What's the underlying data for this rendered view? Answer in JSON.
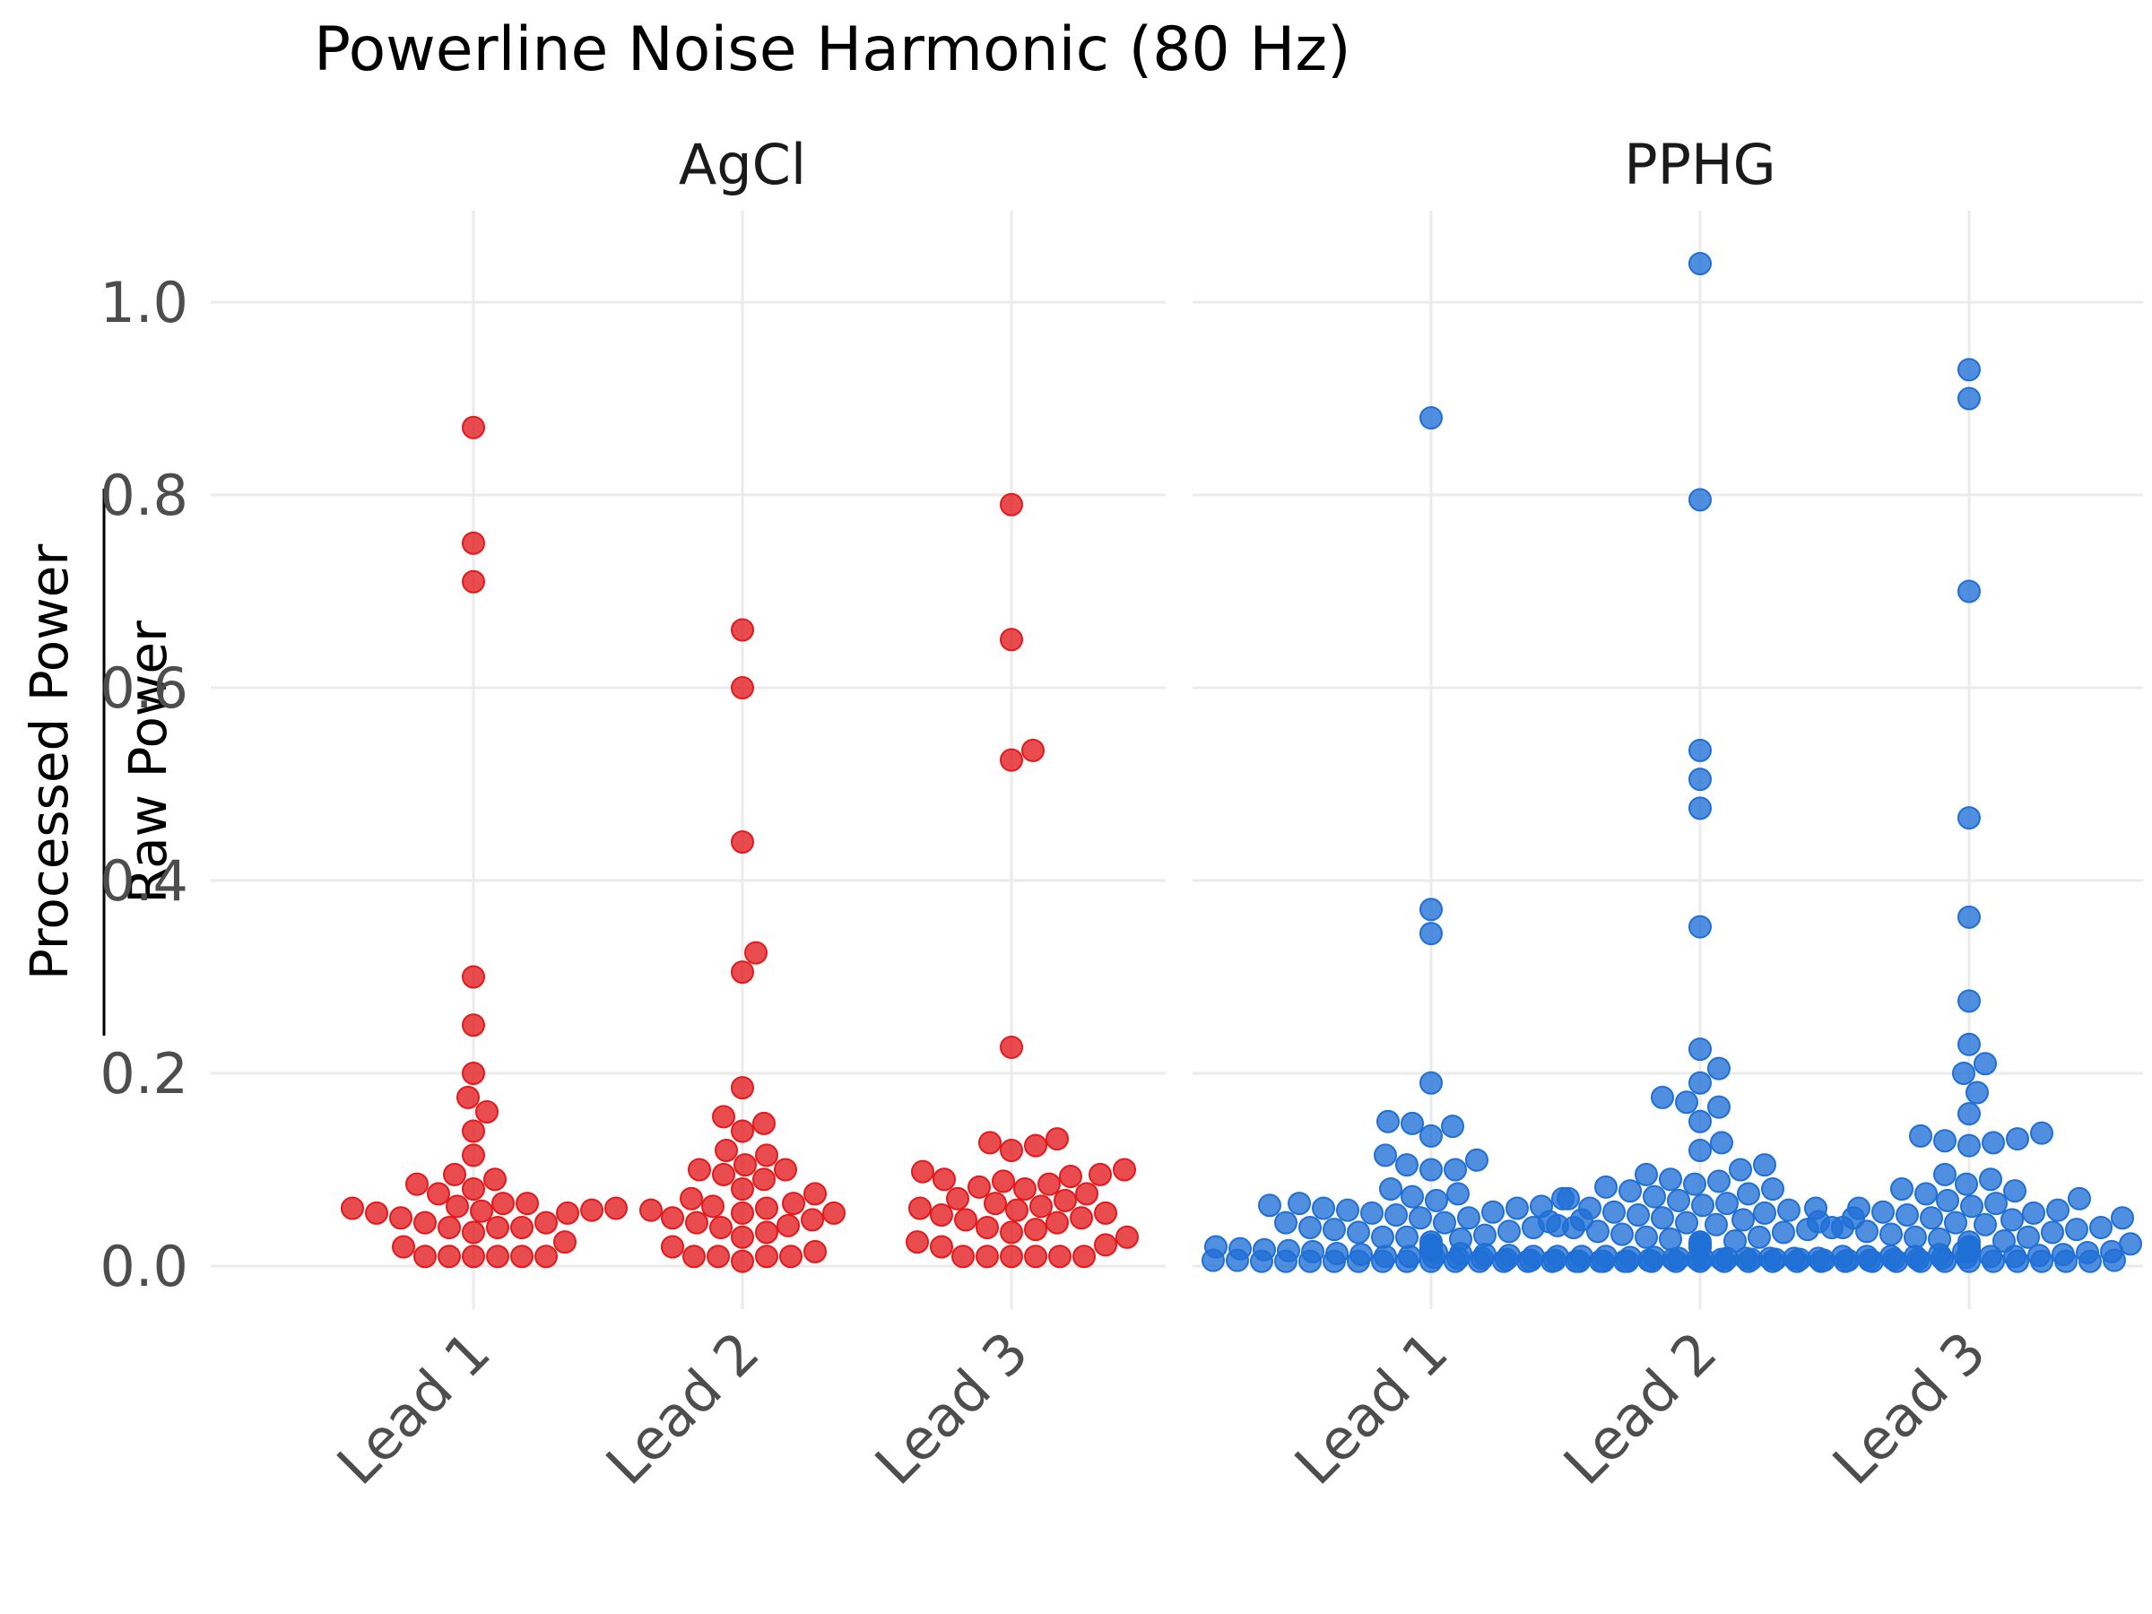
{
  "chart_data": {
    "type": "scatter",
    "subtype": "beeswarm",
    "title": "Powerline Noise Harmonic (80 Hz)",
    "ylabel_numerator": "Processed Power",
    "ylabel_denominator": "Raw Power",
    "ylim": [
      -0.05,
      1.08
    ],
    "yticks": [
      "0.0",
      "0.2",
      "0.4",
      "0.6",
      "0.8",
      "1.0"
    ],
    "categories": [
      "Lead 1",
      "Lead 2",
      "Lead 3"
    ],
    "grid": true,
    "legend": "none",
    "facets": [
      {
        "name": "AgCl",
        "color": "#e31a1c",
        "series": [
          {
            "category": "Lead 1",
            "values": [
              0.87,
              0.75,
              0.71,
              0.3,
              0.25,
              0.2,
              0.175,
              0.16,
              0.14,
              0.115,
              0.095,
              0.09,
              0.085,
              0.08,
              0.075,
              0.065,
              0.065,
              0.062,
              0.06,
              0.06,
              0.058,
              0.057,
              0.055,
              0.055,
              0.05,
              0.045,
              0.045,
              0.04,
              0.04,
              0.04,
              0.035,
              0.025,
              0.02,
              0.01,
              0.01,
              0.01,
              0.01,
              0.01,
              0.01
            ]
          },
          {
            "category": "Lead 2",
            "values": [
              0.66,
              0.6,
              0.44,
              0.325,
              0.305,
              0.185,
              0.155,
              0.148,
              0.14,
              0.12,
              0.115,
              0.105,
              0.1,
              0.1,
              0.095,
              0.09,
              0.08,
              0.075,
              0.07,
              0.065,
              0.062,
              0.06,
              0.058,
              0.055,
              0.055,
              0.05,
              0.048,
              0.045,
              0.042,
              0.04,
              0.035,
              0.03,
              0.02,
              0.015,
              0.01,
              0.01,
              0.01,
              0.01,
              0.005
            ]
          },
          {
            "category": "Lead 3",
            "values": [
              0.79,
              0.65,
              0.535,
              0.525,
              0.227,
              0.132,
              0.128,
              0.125,
              0.12,
              0.1,
              0.098,
              0.095,
              0.093,
              0.09,
              0.088,
              0.085,
              0.082,
              0.08,
              0.075,
              0.07,
              0.068,
              0.065,
              0.062,
              0.06,
              0.058,
              0.055,
              0.053,
              0.05,
              0.048,
              0.045,
              0.04,
              0.038,
              0.035,
              0.03,
              0.025,
              0.022,
              0.02,
              0.01,
              0.01,
              0.01,
              0.01,
              0.01,
              0.01
            ]
          }
        ]
      },
      {
        "name": "PPHG",
        "color": "#1f6fd6",
        "series": [
          {
            "category": "Lead 1",
            "values": [
              0.88,
              0.37,
              0.345,
              0.19,
              0.15,
              0.148,
              0.145,
              0.135,
              0.115,
              0.11,
              0.105,
              0.1,
              0.1,
              0.08,
              0.075,
              0.072,
              0.07,
              0.068,
              0.065,
              0.063,
              0.062,
              0.06,
              0.06,
              0.058,
              0.056,
              0.055,
              0.053,
              0.05,
              0.05,
              0.048,
              0.045,
              0.045,
              0.042,
              0.04,
              0.04,
              0.038,
              0.036,
              0.035,
              0.032,
              0.03,
              0.03,
              0.028,
              0.025,
              0.022,
              0.02,
              0.02,
              0.018,
              0.016,
              0.015,
              0.012,
              0.01,
              0.01,
              0.01,
              0.01,
              0.008,
              0.008,
              0.008,
              0.008,
              0.007,
              0.007,
              0.007,
              0.006,
              0.006,
              0.006,
              0.005,
              0.005,
              0.005,
              0.005,
              0.005,
              0.005,
              0.005,
              0.005,
              0.005,
              0.005,
              0.005,
              0.005,
              0.005,
              0.005,
              0.005,
              0.005
            ]
          },
          {
            "category": "Lead 2",
            "values": [
              1.04,
              0.795,
              0.535,
              0.505,
              0.475,
              0.352,
              0.225,
              0.205,
              0.19,
              0.175,
              0.17,
              0.165,
              0.15,
              0.128,
              0.12,
              0.105,
              0.1,
              0.095,
              0.09,
              0.088,
              0.085,
              0.082,
              0.08,
              0.078,
              0.075,
              0.072,
              0.07,
              0.068,
              0.065,
              0.063,
              0.06,
              0.06,
              0.058,
              0.056,
              0.055,
              0.053,
              0.05,
              0.05,
              0.048,
              0.046,
              0.045,
              0.043,
              0.04,
              0.04,
              0.038,
              0.036,
              0.035,
              0.033,
              0.03,
              0.03,
              0.028,
              0.026,
              0.025,
              0.023,
              0.02,
              0.02,
              0.02,
              0.018,
              0.017,
              0.016,
              0.015,
              0.015,
              0.014,
              0.013,
              0.012,
              0.012,
              0.011,
              0.01,
              0.01,
              0.01,
              0.01,
              0.009,
              0.009,
              0.008,
              0.008,
              0.008,
              0.007,
              0.007,
              0.007,
              0.006,
              0.006,
              0.006,
              0.005,
              0.005,
              0.005,
              0.005,
              0.005,
              0.005,
              0.005,
              0.005,
              0.005,
              0.005,
              0.005,
              0.005
            ]
          },
          {
            "category": "Lead 3",
            "values": [
              0.93,
              0.9,
              0.7,
              0.465,
              0.362,
              0.275,
              0.23,
              0.21,
              0.2,
              0.18,
              0.158,
              0.138,
              0.135,
              0.132,
              0.13,
              0.128,
              0.125,
              0.095,
              0.09,
              0.085,
              0.08,
              0.078,
              0.075,
              0.07,
              0.068,
              0.065,
              0.062,
              0.06,
              0.058,
              0.056,
              0.055,
              0.053,
              0.05,
              0.05,
              0.048,
              0.046,
              0.045,
              0.043,
              0.04,
              0.04,
              0.038,
              0.036,
              0.035,
              0.033,
              0.03,
              0.03,
              0.028,
              0.026,
              0.025,
              0.023,
              0.02,
              0.02,
              0.02,
              0.018,
              0.017,
              0.016,
              0.015,
              0.014,
              0.013,
              0.012,
              0.011,
              0.01,
              0.01,
              0.01,
              0.01,
              0.009,
              0.009,
              0.008,
              0.008,
              0.008,
              0.007,
              0.007,
              0.007,
              0.006,
              0.006,
              0.006,
              0.005,
              0.005,
              0.005,
              0.005,
              0.005,
              0.005,
              0.005,
              0.005,
              0.005,
              0.005
            ]
          }
        ]
      }
    ]
  }
}
